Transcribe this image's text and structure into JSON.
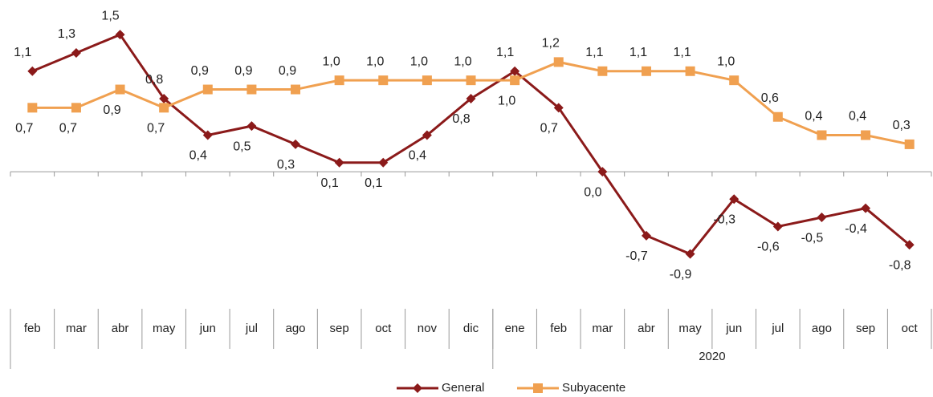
{
  "chart_data": {
    "type": "line",
    "categories": [
      "feb",
      "mar",
      "abr",
      "may",
      "jun",
      "jul",
      "ago",
      "sep",
      "oct",
      "nov",
      "dic",
      "ene",
      "feb",
      "mar",
      "abr",
      "may",
      "jun",
      "jul",
      "ago",
      "sep",
      "oct"
    ],
    "groups": [
      {
        "label": null,
        "count": 11
      },
      {
        "label": "2020",
        "count": 10
      }
    ],
    "series": [
      {
        "name": "General",
        "color": "#8b1a1a",
        "marker": "diamond",
        "values": [
          1.1,
          1.3,
          1.5,
          0.8,
          0.4,
          0.5,
          0.3,
          0.1,
          0.1,
          0.4,
          0.8,
          1.1,
          0.7,
          0.0,
          -0.7,
          -0.9,
          -0.3,
          -0.6,
          -0.5,
          -0.4,
          -0.8
        ],
        "value_labels": [
          "1,1",
          "1,3",
          "1,5",
          "0,8",
          "0,4",
          "0,5",
          "0,3",
          "0,1",
          "0,1",
          "0,4",
          "0,8",
          "1,1",
          "0,7",
          "0,0",
          "-0,7",
          "-0,9",
          "-0,3",
          "-0,6",
          "-0,5",
          "-0,4",
          "-0,8"
        ]
      },
      {
        "name": "Subyacente",
        "color": "#f0a050",
        "marker": "square",
        "values": [
          0.7,
          0.7,
          0.9,
          0.7,
          0.9,
          0.9,
          0.9,
          1.0,
          1.0,
          1.0,
          1.0,
          1.0,
          1.2,
          1.1,
          1.1,
          1.1,
          1.0,
          0.6,
          0.4,
          0.4,
          0.3
        ],
        "value_labels": [
          "0,7",
          "0,7",
          "0,9",
          "0,7",
          "0,9",
          "0,9",
          "0,9",
          "1,0",
          "1,0",
          "1,0",
          "1,0",
          "1,0",
          "1,2",
          "1,1",
          "1,1",
          "1,1",
          "1,0",
          "0,6",
          "0,4",
          "0,4",
          "0,3"
        ]
      }
    ],
    "ylim": [
      -1.5,
      1.8
    ],
    "legend": "bottom"
  }
}
